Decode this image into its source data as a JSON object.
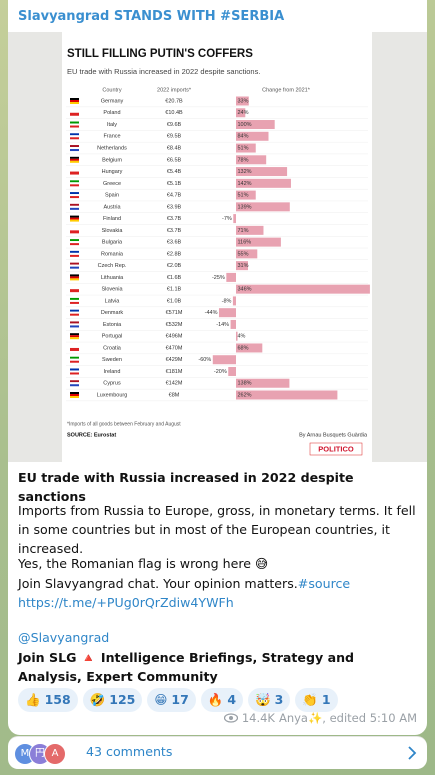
{
  "channel": "Slavyangrad STANDS WITH #SERBIA",
  "chart_data": {
    "type": "bar",
    "title": "STILL FILLING PUTIN'S COFFERS",
    "subtitle": "EU trade with Russia increased in 2022 despite sanctions.",
    "headers": [
      "Country",
      "2022 imports*",
      "Change from 2021*"
    ],
    "categories": [
      "Germany",
      "Poland",
      "Italy",
      "France",
      "Netherlands",
      "Belgium",
      "Hungary",
      "Greece",
      "Spain",
      "Austria",
      "Finland",
      "Slovakia",
      "Bulgaria",
      "Romania",
      "Czech Rep.",
      "Lithuania",
      "Slovenia",
      "Latvia",
      "Denmark",
      "Estonia",
      "Portugal",
      "Croatia",
      "Sweden",
      "Ireland",
      "Cyprus",
      "Luxembourg"
    ],
    "imports": [
      "€20.7B",
      "€10.4B",
      "€9.6B",
      "€9.5B",
      "€8.4B",
      "€6.5B",
      "€5.4B",
      "€5.1B",
      "€4.7B",
      "€3.9B",
      "€3.7B",
      "€3.7B",
      "€3.6B",
      "€2.8B",
      "€2.0B",
      "€1.6B",
      "€1.1B",
      "€1.0B",
      "€571M",
      "€532M",
      "€496M",
      "€470M",
      "€429M",
      "€181M",
      "€142M",
      "€8M"
    ],
    "values": [
      33,
      24,
      100,
      84,
      51,
      78,
      132,
      142,
      51,
      139,
      -7,
      71,
      116,
      55,
      31,
      -25,
      346,
      -8,
      -44,
      -14,
      4,
      68,
      -60,
      -20,
      138,
      262
    ],
    "value_labels": [
      "33%",
      "24%",
      "100%",
      "84%",
      "51%",
      "78%",
      "132%",
      "142%",
      "51%",
      "139%",
      "-7%",
      "71%",
      "116%",
      "55%",
      "31%",
      "-25%",
      "346%",
      "-8%",
      "-44%",
      "-14%",
      "4%",
      "68%",
      "-60%",
      "-20%",
      "138%",
      "262%"
    ],
    "color": "#e8a2b1",
    "footnote": "*Imports of all goods between February and August",
    "source": "SOURCE: Eurostat",
    "byline": "By Arnau Busquets Guàrdia",
    "brand": "POLITICO"
  },
  "post": {
    "heading": "EU trade with Russia increased in 2022 despite sanctions",
    "body": "Imports from Russia to Europe, gross, in monetary terms. It fell in some countries but in most of the European countries, it increased.",
    "note": "Yes, the Romanian flag is wrong here 😅",
    "join_chat": "Join Slavyangrad chat. Your opinion matters.",
    "hashtag": "#source",
    "link": "https://t.me/+PUg0rQrZdiw4YWFh",
    "mention": "@Slavyangrad",
    "promo": "Join SLG 🔺 Intelligence Briefings, Strategy and Analysis, Expert Community"
  },
  "reactions": [
    {
      "emoji": "👍",
      "count": 158
    },
    {
      "emoji": "🤣",
      "count": 125
    },
    {
      "emoji": "😁",
      "count": 17
    },
    {
      "emoji": "🔥",
      "count": 4
    },
    {
      "emoji": "🤯",
      "count": 3
    },
    {
      "emoji": "👏",
      "count": 1
    }
  ],
  "meta": {
    "views": "14.4K",
    "signature": "Anya✨, edited 5:10 AM"
  },
  "comments": {
    "avatars": [
      "M",
      "円",
      "A"
    ],
    "label": "43 comments"
  }
}
